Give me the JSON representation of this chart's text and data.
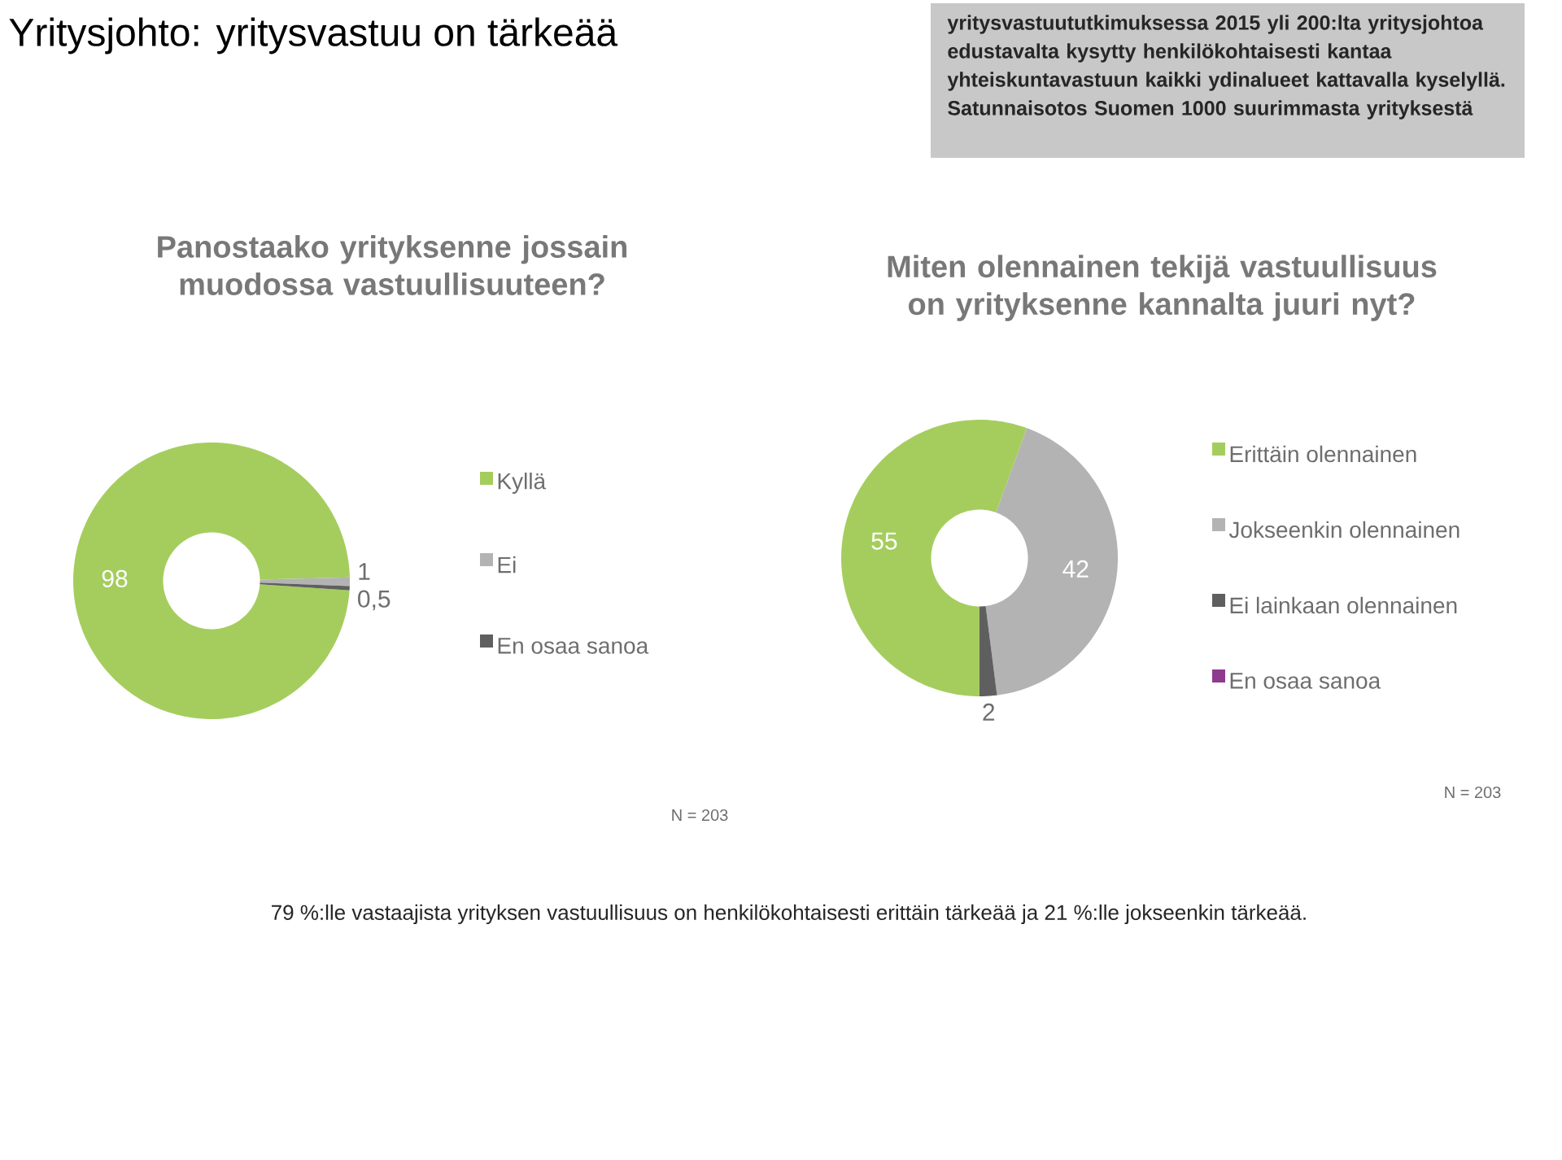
{
  "chart_data": [
    {
      "type": "donut",
      "title": "Panostaako yrityksenne jossain muodossa vastuullisuuteen?",
      "categories": [
        "Kyllä",
        "Ei",
        "En osaa sanoa"
      ],
      "values": [
        98,
        1,
        0.5
      ],
      "colors": [
        "#a5cd5e",
        "#b3b3b3",
        "#5f5f5f"
      ],
      "value_labels": [
        "98",
        "1",
        "0,5"
      ],
      "legend": "right",
      "annotations": [
        "Yritysjohto: yritysvastuu on tärkeää",
        "yritysvastuututkimuksessa 2015 yli 200:lta yritysjohtoa edustavalta kysytty henkilökohtaisesti kantaa yhteiskuntavastuun kaikki ydinalueet kattavalla kyselyllä. Satunnaisotos Suomen 1000 suurimmasta yrityksestä",
        "N = 203"
      ]
    },
    {
      "type": "donut",
      "title": "Miten olennainen tekijä vastuullisuus on yrityksenne kannalta juuri nyt?",
      "categories": [
        "Erittäin olennainen",
        "Jokseenkin olennainen",
        "Ei lainkaan olennainen",
        "En osaa sanoa"
      ],
      "values": [
        55,
        42,
        2,
        0
      ],
      "colors": [
        "#a5cd5e",
        "#b3b3b3",
        "#5f5f5f",
        "#8e3a8e"
      ],
      "value_labels": [
        "55",
        "42",
        "2",
        null
      ],
      "legend": "right",
      "annotations": [
        "N = 203",
        "79 %:lle vastaajista yrityksen vastuullisuus on henkilökohtaisesti erittäin tärkeää ja 21 %:lle jokseenkin tärkeää."
      ]
    }
  ]
}
